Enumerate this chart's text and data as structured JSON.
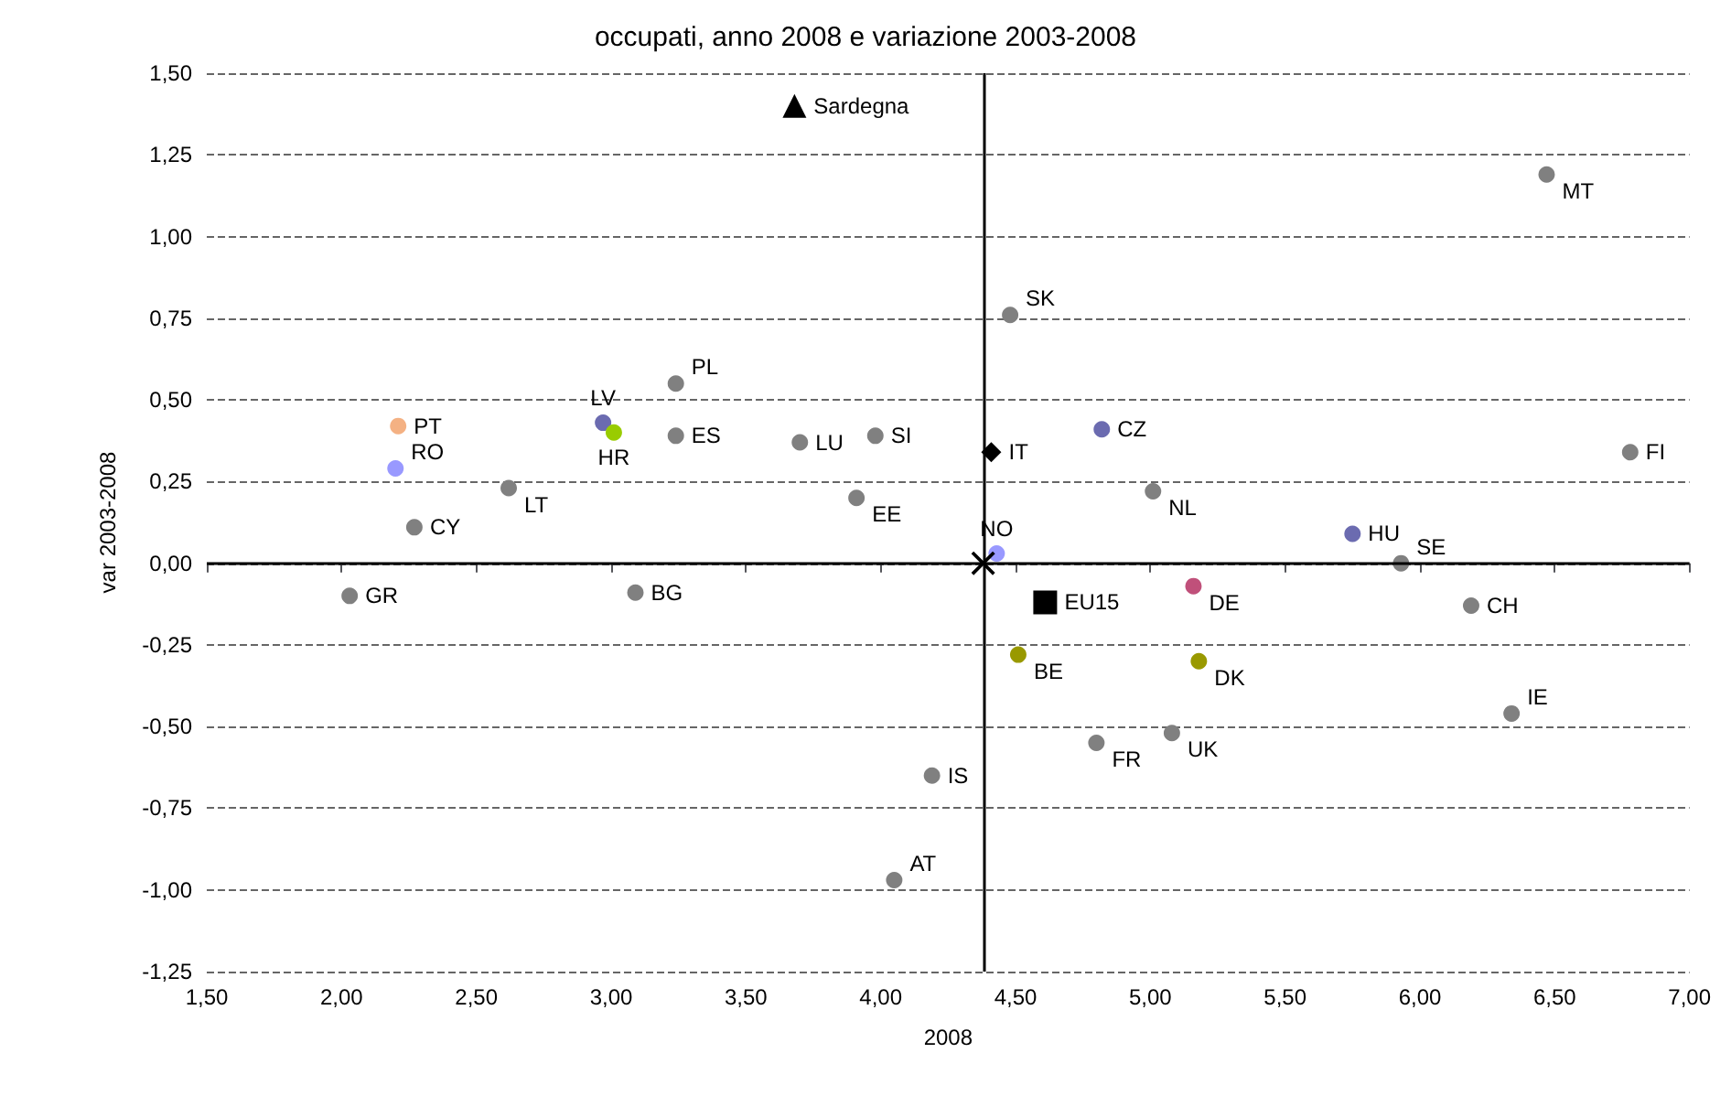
{
  "chart_data": {
    "type": "scatter",
    "title": "occupati, anno 2008 e variazione 2003-2008",
    "xlabel": "2008",
    "ylabel": "var 2003-2008",
    "xlim": [
      1.5,
      7
    ],
    "xticks": [
      {
        "value": 1.5,
        "label": "1,50"
      },
      {
        "value": 2,
        "label": "2,00"
      },
      {
        "value": 2.5,
        "label": "2,50"
      },
      {
        "value": 3,
        "label": "3,00"
      },
      {
        "value": 3.5,
        "label": "3,50"
      },
      {
        "value": 4,
        "label": "4,00"
      },
      {
        "value": 4.5,
        "label": "4,50"
      },
      {
        "value": 5,
        "label": "5,00"
      },
      {
        "value": 5.5,
        "label": "5,50"
      },
      {
        "value": 6,
        "label": "6,00"
      },
      {
        "value": 6.5,
        "label": "6,50"
      },
      {
        "value": 7,
        "label": "7,00"
      }
    ],
    "ylim": [
      -1.25,
      1.5
    ],
    "yticks": [
      {
        "value": -1.25,
        "label": "-1,25"
      },
      {
        "value": -1,
        "label": "-1,00"
      },
      {
        "value": -0.75,
        "label": "-0,75"
      },
      {
        "value": -0.5,
        "label": "-0,50"
      },
      {
        "value": -0.25,
        "label": "-0,25"
      },
      {
        "value": 0,
        "label": "0,00"
      },
      {
        "value": 0.25,
        "label": "0,25"
      },
      {
        "value": 0.5,
        "label": "0,50"
      },
      {
        "value": 0.75,
        "label": "0,75"
      },
      {
        "value": 1,
        "label": "1,00"
      },
      {
        "value": 1.25,
        "label": "1,25"
      },
      {
        "value": 1.5,
        "label": "1,50"
      }
    ],
    "grid": "y",
    "legend": false,
    "ref_lines": [
      {
        "axis": "x",
        "value": 4.38,
        "color": "#000000",
        "line_style": "solid"
      },
      {
        "axis": "y",
        "value": 0,
        "color": "#000000",
        "line_style": "solid"
      }
    ],
    "series": [
      {
        "name": "Sardegna",
        "color": "#000000",
        "marker": "triangle",
        "x": [
          3.68
        ],
        "values": [
          1.4
        ]
      },
      {
        "name": "PT",
        "color": "#f4b183",
        "marker": "circle",
        "x": [
          2.21
        ],
        "values": [
          0.42
        ]
      },
      {
        "name": "RO",
        "color": "#9999ff",
        "marker": "circle",
        "x": [
          2.2
        ],
        "values": [
          0.29
        ]
      },
      {
        "name": "LT",
        "color": "#808080",
        "marker": "circle",
        "x": [
          2.62
        ],
        "values": [
          0.23
        ]
      },
      {
        "name": "CY",
        "color": "#808080",
        "marker": "circle",
        "x": [
          2.27
        ],
        "values": [
          0.11
        ]
      },
      {
        "name": "LV",
        "color": "#6b6bb0",
        "marker": "circle",
        "x": [
          2.97
        ],
        "values": [
          0.43
        ]
      },
      {
        "name": "HR",
        "color": "#99cc00",
        "marker": "circle",
        "x": [
          3.01
        ],
        "values": [
          0.4
        ]
      },
      {
        "name": "PL",
        "color": "#808080",
        "marker": "circle",
        "x": [
          3.24
        ],
        "values": [
          0.55
        ]
      },
      {
        "name": "ES",
        "color": "#808080",
        "marker": "circle",
        "x": [
          3.24
        ],
        "values": [
          0.39
        ]
      },
      {
        "name": "LU",
        "color": "#808080",
        "marker": "circle",
        "x": [
          3.7
        ],
        "values": [
          0.37
        ]
      },
      {
        "name": "SI",
        "color": "#808080",
        "marker": "circle",
        "x": [
          3.98
        ],
        "values": [
          0.39
        ]
      },
      {
        "name": "EE",
        "color": "#808080",
        "marker": "circle",
        "x": [
          3.91
        ],
        "values": [
          0.2
        ]
      },
      {
        "name": "IT",
        "color": "#000000",
        "marker": "diamond",
        "x": [
          4.41
        ],
        "values": [
          0.34
        ]
      },
      {
        "name": "NO",
        "color": "#9999ff",
        "marker": "circle",
        "x": [
          4.43
        ],
        "values": [
          0.03
        ]
      },
      {
        "color": "#000000",
        "marker": "cross",
        "x": [
          4.38
        ],
        "values": [
          0
        ]
      },
      {
        "name": "GR",
        "color": "#808080",
        "marker": "circle",
        "x": [
          2.03
        ],
        "values": [
          -0.1
        ]
      },
      {
        "name": "BG",
        "color": "#808080",
        "marker": "circle",
        "x": [
          3.09
        ],
        "values": [
          -0.09
        ]
      },
      {
        "name": "IS",
        "color": "#808080",
        "marker": "circle",
        "x": [
          4.19
        ],
        "values": [
          -0.65
        ]
      },
      {
        "name": "AT",
        "color": "#808080",
        "marker": "circle",
        "x": [
          4.05
        ],
        "values": [
          -0.97
        ]
      },
      {
        "name": "EU15",
        "color": "#000000",
        "marker": "square",
        "x": [
          4.61
        ],
        "values": [
          -0.12
        ]
      },
      {
        "name": "DE",
        "color": "#c0507a",
        "marker": "circle",
        "x": [
          5.16
        ],
        "values": [
          -0.07
        ]
      },
      {
        "name": "CH",
        "color": "#808080",
        "marker": "circle",
        "x": [
          6.19
        ],
        "values": [
          -0.13
        ]
      },
      {
        "name": "BE",
        "color": "#999900",
        "marker": "circle",
        "x": [
          4.51
        ],
        "values": [
          -0.28
        ]
      },
      {
        "name": "DK",
        "color": "#999900",
        "marker": "circle",
        "x": [
          5.18
        ],
        "values": [
          -0.3
        ]
      },
      {
        "name": "IE",
        "color": "#808080",
        "marker": "circle",
        "x": [
          6.34
        ],
        "values": [
          -0.46
        ]
      },
      {
        "name": "FR",
        "color": "#808080",
        "marker": "circle",
        "x": [
          4.8
        ],
        "values": [
          -0.55
        ]
      },
      {
        "name": "UK",
        "color": "#808080",
        "marker": "circle",
        "x": [
          5.08
        ],
        "values": [
          -0.52
        ]
      },
      {
        "name": "SE",
        "color": "#808080",
        "marker": "circle",
        "x": [
          5.93
        ],
        "values": [
          0
        ]
      },
      {
        "name": "SK",
        "color": "#808080",
        "marker": "circle",
        "x": [
          4.48
        ],
        "values": [
          0.76
        ]
      },
      {
        "name": "MT",
        "color": "#808080",
        "marker": "circle",
        "x": [
          6.47
        ],
        "values": [
          1.19
        ]
      },
      {
        "name": "CZ",
        "color": "#6b6bb0",
        "marker": "circle",
        "x": [
          4.82
        ],
        "values": [
          0.41
        ]
      },
      {
        "name": "NL",
        "color": "#808080",
        "marker": "circle",
        "x": [
          5.01
        ],
        "values": [
          0.22
        ]
      },
      {
        "name": "FI",
        "color": "#808080",
        "marker": "circle",
        "x": [
          6.78
        ],
        "values": [
          0.34
        ]
      },
      {
        "name": "HU",
        "color": "#6b6bb0",
        "marker": "circle",
        "x": [
          5.75
        ],
        "values": [
          0.09
        ]
      }
    ]
  }
}
